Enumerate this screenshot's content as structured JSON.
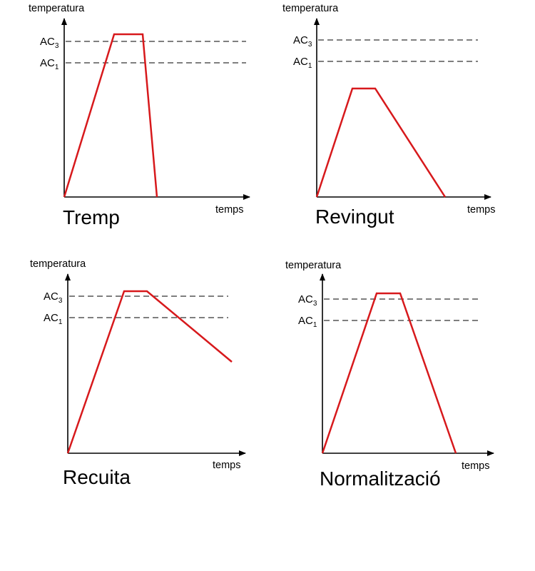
{
  "colors": {
    "curve": "#d7191c",
    "axis": "#000000",
    "reference_line": "#333333"
  },
  "panels": [
    {
      "title": "Tremp",
      "y_axis_label": "temperatura",
      "x_axis_label": "temps",
      "ac3_label": "AC",
      "ac3_sub": "3",
      "ac1_label": "AC",
      "ac1_sub": "1"
    },
    {
      "title": "Revingut",
      "y_axis_label": "temperatura",
      "x_axis_label": "temps",
      "ac3_label": "AC",
      "ac3_sub": "3",
      "ac1_label": "AC",
      "ac1_sub": "1"
    },
    {
      "title": "Recuita",
      "y_axis_label": "temperatura",
      "x_axis_label": "temps",
      "ac3_label": "AC",
      "ac3_sub": "3",
      "ac1_label": "AC",
      "ac1_sub": "1"
    },
    {
      "title": "Normalització",
      "y_axis_label": "temperatura",
      "x_axis_label": "temps",
      "ac3_label": "AC",
      "ac3_sub": "3",
      "ac1_label": "AC",
      "ac1_sub": "1"
    }
  ]
}
